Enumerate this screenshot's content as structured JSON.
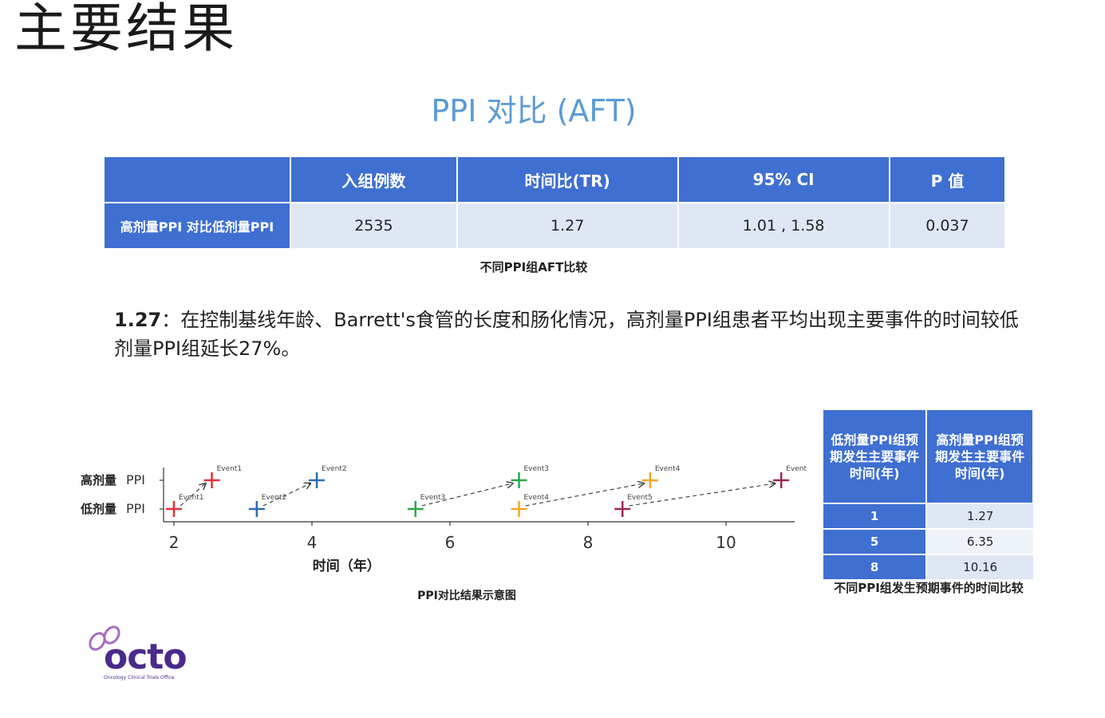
{
  "page": {
    "title": "主要结果",
    "subtitle": "PPI 对比 (AFT)"
  },
  "main_table": {
    "headers": [
      "入组例数",
      "时间比(TR)",
      "95% CI",
      "P 值"
    ],
    "row_label": "高剂量PPI 对比低剂量PPI",
    "values": [
      "2535",
      "1.27",
      "1.01 , 1.58",
      "0.037"
    ],
    "caption": "不同PPI组AFT比较"
  },
  "body": {
    "lead": "1.27",
    "text": "：在控制基线年龄、Barrett's食管的长度和肠化情况，高剂量PPI组患者平均出现主要事件的时间较低剂量PPI组延长27%。"
  },
  "chart_data": {
    "type": "scatter",
    "xlabel": "时间（年）",
    "xlim": [
      2,
      11.3
    ],
    "x_ticks": [
      2,
      4,
      6,
      8,
      10
    ],
    "categories": [
      "低剂量 PPI",
      "高剂量 PPI"
    ],
    "series": [
      {
        "name": "",
        "color": "#e0303b",
        "points": [
          {
            "group": "低剂量 PPI",
            "x": 2.0,
            "label": "Event1"
          },
          {
            "group": "高剂量 PPI",
            "x": 2.55,
            "label": "Event1"
          }
        ]
      },
      {
        "name": "",
        "color": "#2a6db5",
        "points": [
          {
            "group": "低剂量 PPI",
            "x": 3.2,
            "label": "Event2"
          },
          {
            "group": "高剂量 PPI",
            "x": 4.07,
            "label": "Event2"
          }
        ]
      },
      {
        "name": "",
        "color": "#2aa84a",
        "points": [
          {
            "group": "低剂量 PPI",
            "x": 5.5,
            "label": "Event3"
          },
          {
            "group": "高剂量 PPI",
            "x": 7.0,
            "label": "Event3"
          }
        ]
      },
      {
        "name": "",
        "color": "#f5a623",
        "points": [
          {
            "group": "低剂量 PPI",
            "x": 7.0,
            "label": "Event4"
          },
          {
            "group": "高剂量 PPI",
            "x": 8.9,
            "label": "Event4"
          }
        ]
      },
      {
        "name": "",
        "color": "#9b2a4a",
        "points": [
          {
            "group": "低剂量 PPI",
            "x": 8.5,
            "label": "Event5"
          },
          {
            "group": "高剂量 PPI",
            "x": 10.8,
            "label": "Event"
          }
        ]
      }
    ],
    "caption": "PPI对比结果示意图"
  },
  "side_table": {
    "headers": [
      "低剂量PPI组预期发生主要事件时间(年)",
      "高剂量PPI组预期发生主要事件时间(年)"
    ],
    "rows": [
      [
        "1",
        "1.27"
      ],
      [
        "5",
        "6.35"
      ],
      [
        "8",
        "10.16"
      ]
    ],
    "caption": "不同PPI组发生预期事件的时间比较"
  },
  "logo": {
    "text": "octo",
    "subtext": "Oncology Clinical Trials Office"
  },
  "colors": {
    "header_blue": "#3f6fd1",
    "cell_light": "#dfe7f5",
    "subtitle_blue": "#5b9bd5",
    "logo_purple": "#4a2a8a"
  }
}
